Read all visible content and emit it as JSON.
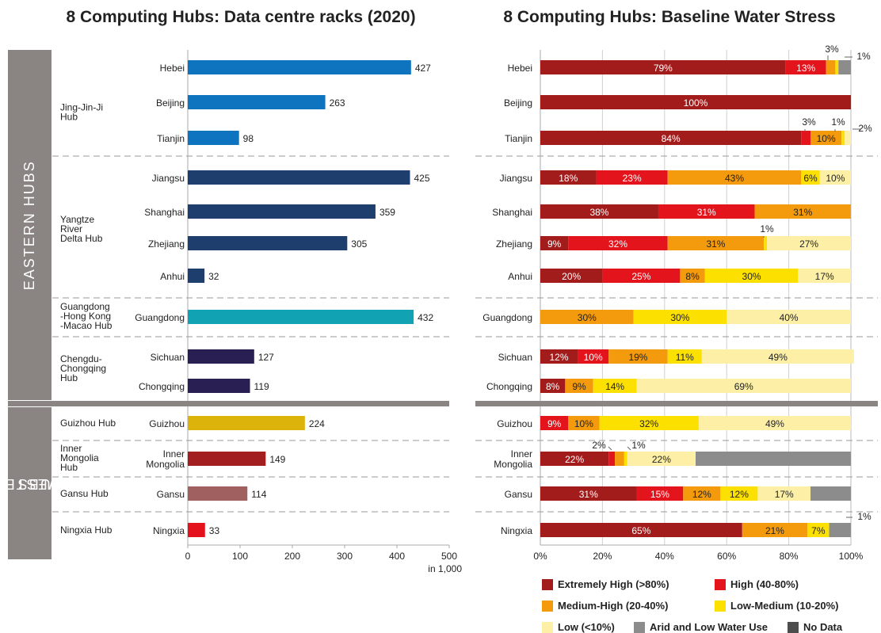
{
  "left_title": "8 Computing Hubs: Data centre racks (2020)",
  "right_title": "8 Computing Hubs: Baseline Water Stress",
  "groups": {
    "eastern": "EASTERN HUBS",
    "western_line1": "WESTERN",
    "western_line2": "HUBS"
  },
  "hubs": [
    {
      "lines": [
        "Jing-Jin-Ji",
        "Hub"
      ]
    },
    {
      "lines": [
        "Yangtze",
        "River",
        "Delta Hub"
      ]
    },
    {
      "lines": [
        "Guangdong",
        "-Hong Kong",
        "-Macao Hub"
      ]
    },
    {
      "lines": [
        "Chengdu-",
        "Chongqing",
        "Hub"
      ]
    },
    {
      "lines": [
        "Guizhou Hub"
      ]
    },
    {
      "lines": [
        "Inner",
        "Mongolia",
        "Hub"
      ]
    },
    {
      "lines": [
        "Gansu Hub"
      ]
    },
    {
      "lines": [
        "Ningxia Hub"
      ]
    }
  ],
  "chart_data": [
    {
      "type": "bar",
      "orientation": "horizontal",
      "title": "8 Computing Hubs: Data centre racks (2020)",
      "categories": [
        "Hebei",
        "Beijing",
        "Tianjin",
        "Jiangsu",
        "Shanghai",
        "Zhejiang",
        "Anhui",
        "Guangdong",
        "Sichuan",
        "Chongqing",
        "Guizhou",
        "Inner Mongolia",
        "Gansu",
        "Ningxia"
      ],
      "values": [
        427,
        263,
        98,
        425,
        359,
        305,
        32,
        432,
        127,
        119,
        224,
        149,
        114,
        33
      ],
      "colors": [
        "#0e74bf",
        "#0e74bf",
        "#0e74bf",
        "#1e3f6e",
        "#1e3f6e",
        "#1e3f6e",
        "#1e3f6e",
        "#11a2b3",
        "#2a1f52",
        "#2a1f52",
        "#dbb30a",
        "#a31f1f",
        "#a06060",
        "#e3121c"
      ],
      "xlim": [
        0,
        500
      ],
      "xticks": [
        0,
        100,
        200,
        300,
        400,
        500
      ],
      "xlabel": "in 1,000"
    },
    {
      "type": "bar",
      "orientation": "horizontal",
      "stacked": true,
      "title": "8 Computing Hubs: Baseline Water Stress",
      "categories": [
        "Hebei",
        "Beijing",
        "Tianjin",
        "Jiangsu",
        "Shanghai",
        "Zhejiang",
        "Anhui",
        "Guangdong",
        "Sichuan",
        "Chongqing",
        "Guizhou",
        "Inner Mongolia",
        "Gansu",
        "Ningxia"
      ],
      "xticks": [
        "0%",
        "20%",
        "40%",
        "60%",
        "80%",
        "100%"
      ],
      "series": [
        {
          "name": "Extremely High (>80%)",
          "color": "#a31c1c",
          "text_color": "#ffffff",
          "values": [
            79,
            100,
            84,
            18,
            38,
            9,
            20,
            0,
            12,
            8,
            0,
            22,
            31,
            65
          ]
        },
        {
          "name": "High (40-80%)",
          "color": "#e4141c",
          "text_color": "#ffffff",
          "values": [
            13,
            0,
            3,
            23,
            31,
            32,
            25,
            0,
            10,
            0,
            9,
            2,
            15,
            0
          ]
        },
        {
          "name": "Medium-High (20-40%)",
          "color": "#f39a0d",
          "text_color": "#222222",
          "values": [
            3,
            0,
            10,
            43,
            31,
            31,
            8,
            30,
            19,
            9,
            10,
            3,
            12,
            21
          ]
        },
        {
          "name": "Low-Medium (10-20%)",
          "color": "#fce000",
          "text_color": "#222222",
          "values": [
            1,
            0,
            1,
            6,
            0,
            1,
            30,
            30,
            11,
            14,
            32,
            1,
            12,
            7
          ]
        },
        {
          "name": "Low (<10%)",
          "color": "#fdf0a6",
          "text_color": "#222222",
          "values": [
            0,
            0,
            2,
            10,
            0,
            27,
            17,
            40,
            49,
            69,
            49,
            22,
            17,
            0
          ]
        },
        {
          "name": "Arid and Low Water Use",
          "color": "#8c8c8c",
          "text_color": "#222222",
          "values": [
            4,
            0,
            0,
            0,
            0,
            0,
            0,
            0,
            0,
            0,
            0,
            50,
            13,
            7
          ]
        },
        {
          "name": "No Data",
          "color": "#4d4d4d",
          "text_color": "#ffffff",
          "values": [
            0,
            0,
            0,
            0,
            0,
            0,
            0,
            0,
            0,
            0,
            0,
            0,
            0,
            0
          ]
        }
      ],
      "callouts": [
        {
          "category": "Hebei",
          "text": "3%"
        },
        {
          "category": "Hebei",
          "text": "1%"
        },
        {
          "category": "Tianjin",
          "text": "3%"
        },
        {
          "category": "Tianjin",
          "text": "1%"
        },
        {
          "category": "Tianjin",
          "text": "2%"
        },
        {
          "category": "Zhejiang",
          "text": "1%"
        },
        {
          "category": "Inner Mongolia",
          "text": "2%"
        },
        {
          "category": "Inner Mongolia",
          "text": "1%"
        },
        {
          "category": "Ningxia",
          "text": "1%"
        }
      ]
    }
  ]
}
